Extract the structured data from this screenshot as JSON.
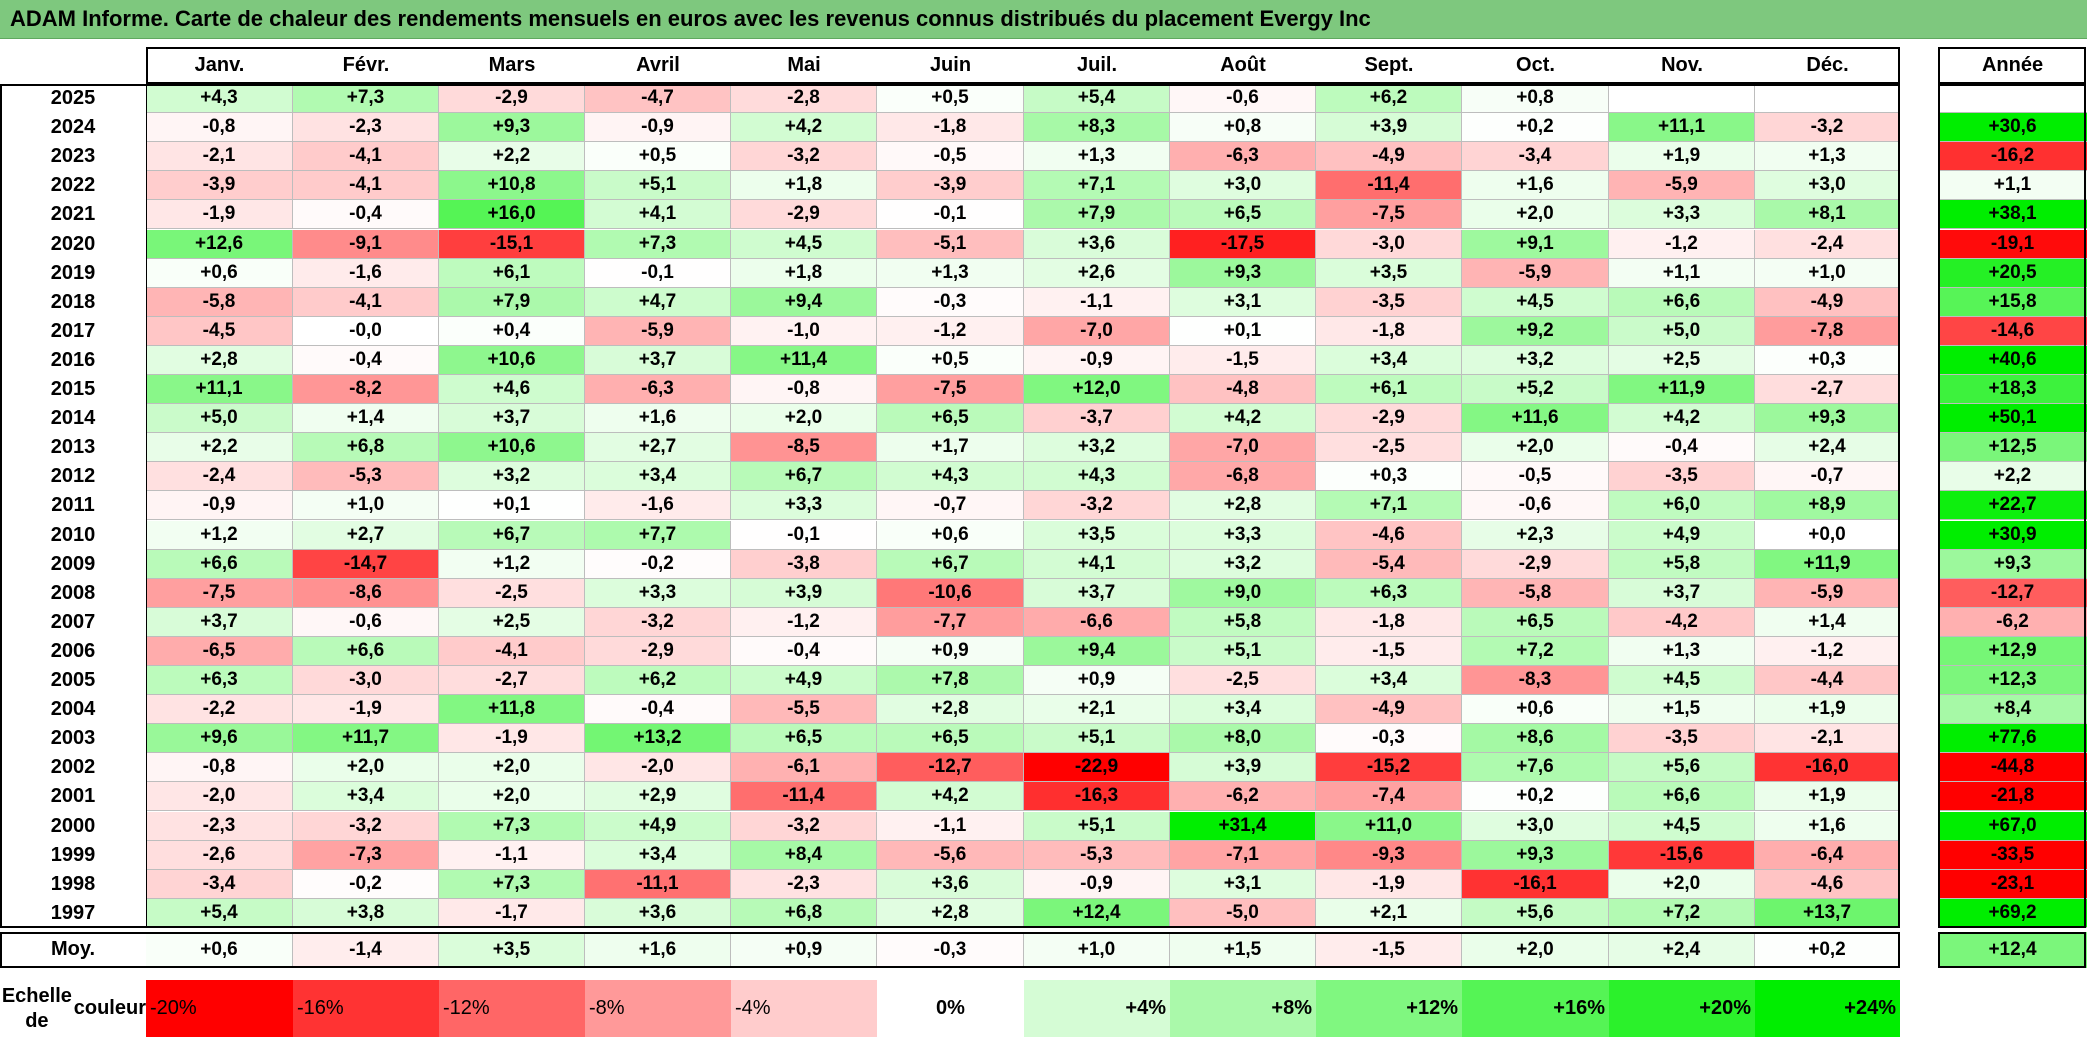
{
  "title": "ADAM Informe. Carte de chaleur des rendements mensuels en euros avec les revenus connus distribués du placement Evergy Inc",
  "chart_data": {
    "type": "heatmap",
    "title": "ADAM Informe. Carte de chaleur des rendements mensuels en euros avec les revenus connus distribués du placement Evergy Inc",
    "months": [
      "Janv.",
      "Févr.",
      "Mars",
      "Avril",
      "Mai",
      "Juin",
      "Juil.",
      "Août",
      "Sept.",
      "Oct.",
      "Nov.",
      "Déc."
    ],
    "annual_header": "Année",
    "rows": [
      {
        "year": "2025",
        "values": [
          "+4,3",
          "+7,3",
          "-2,9",
          "-4,7",
          "-2,8",
          "+0,5",
          "+5,4",
          "-0,6",
          "+6,2",
          "+0,8",
          "",
          ""
        ],
        "annual": ""
      },
      {
        "year": "2024",
        "values": [
          "-0,8",
          "-2,3",
          "+9,3",
          "-0,9",
          "+4,2",
          "-1,8",
          "+8,3",
          "+0,8",
          "+3,9",
          "+0,2",
          "+11,1",
          "-3,2"
        ],
        "annual": "+30,6"
      },
      {
        "year": "2023",
        "values": [
          "-2,1",
          "-4,1",
          "+2,2",
          "+0,5",
          "-3,2",
          "-0,5",
          "+1,3",
          "-6,3",
          "-4,9",
          "-3,4",
          "+1,9",
          "+1,3"
        ],
        "annual": "-16,2"
      },
      {
        "year": "2022",
        "values": [
          "-3,9",
          "-4,1",
          "+10,8",
          "+5,1",
          "+1,8",
          "-3,9",
          "+7,1",
          "+3,0",
          "-11,4",
          "+1,6",
          "-5,9",
          "+3,0"
        ],
        "annual": "+1,1"
      },
      {
        "year": "2021",
        "values": [
          "-1,9",
          "-0,4",
          "+16,0",
          "+4,1",
          "-2,9",
          "-0,1",
          "+7,9",
          "+6,5",
          "-7,5",
          "+2,0",
          "+3,3",
          "+8,1"
        ],
        "annual": "+38,1"
      },
      {
        "year": "2020",
        "values": [
          "+12,6",
          "-9,1",
          "-15,1",
          "+7,3",
          "+4,5",
          "-5,1",
          "+3,6",
          "-17,5",
          "-3,0",
          "+9,1",
          "-1,2",
          "-2,4"
        ],
        "annual": "-19,1"
      },
      {
        "year": "2019",
        "values": [
          "+0,6",
          "-1,6",
          "+6,1",
          "-0,1",
          "+1,8",
          "+1,3",
          "+2,6",
          "+9,3",
          "+3,5",
          "-5,9",
          "+1,1",
          "+1,0"
        ],
        "annual": "+20,5"
      },
      {
        "year": "2018",
        "values": [
          "-5,8",
          "-4,1",
          "+7,9",
          "+4,7",
          "+9,4",
          "-0,3",
          "-1,1",
          "+3,1",
          "-3,5",
          "+4,5",
          "+6,6",
          "-4,9"
        ],
        "annual": "+15,8"
      },
      {
        "year": "2017",
        "values": [
          "-4,5",
          "-0,0",
          "+0,4",
          "-5,9",
          "-1,0",
          "-1,2",
          "-7,0",
          "+0,1",
          "-1,8",
          "+9,2",
          "+5,0",
          "-7,8"
        ],
        "annual": "-14,6"
      },
      {
        "year": "2016",
        "values": [
          "+2,8",
          "-0,4",
          "+10,6",
          "+3,7",
          "+11,4",
          "+0,5",
          "-0,9",
          "-1,5",
          "+3,4",
          "+3,2",
          "+2,5",
          "+0,3"
        ],
        "annual": "+40,6"
      },
      {
        "year": "2015",
        "values": [
          "+11,1",
          "-8,2",
          "+4,6",
          "-6,3",
          "-0,8",
          "-7,5",
          "+12,0",
          "-4,8",
          "+6,1",
          "+5,2",
          "+11,9",
          "-2,7"
        ],
        "annual": "+18,3"
      },
      {
        "year": "2014",
        "values": [
          "+5,0",
          "+1,4",
          "+3,7",
          "+1,6",
          "+2,0",
          "+6,5",
          "-3,7",
          "+4,2",
          "-2,9",
          "+11,6",
          "+4,2",
          "+9,3"
        ],
        "annual": "+50,1"
      },
      {
        "year": "2013",
        "values": [
          "+2,2",
          "+6,8",
          "+10,6",
          "+2,7",
          "-8,5",
          "+1,7",
          "+3,2",
          "-7,0",
          "-2,5",
          "+2,0",
          "-0,4",
          "+2,4"
        ],
        "annual": "+12,5"
      },
      {
        "year": "2012",
        "values": [
          "-2,4",
          "-5,3",
          "+3,2",
          "+3,4",
          "+6,7",
          "+4,3",
          "+4,3",
          "-6,8",
          "+0,3",
          "-0,5",
          "-3,5",
          "-0,7"
        ],
        "annual": "+2,2"
      },
      {
        "year": "2011",
        "values": [
          "-0,9",
          "+1,0",
          "+0,1",
          "-1,6",
          "+3,3",
          "-0,7",
          "-3,2",
          "+2,8",
          "+7,1",
          "-0,6",
          "+6,0",
          "+8,9"
        ],
        "annual": "+22,7"
      },
      {
        "year": "2010",
        "values": [
          "+1,2",
          "+2,7",
          "+6,7",
          "+7,7",
          "-0,1",
          "+0,6",
          "+3,5",
          "+3,3",
          "-4,6",
          "+2,3",
          "+4,9",
          "+0,0"
        ],
        "annual": "+30,9"
      },
      {
        "year": "2009",
        "values": [
          "+6,6",
          "-14,7",
          "+1,2",
          "-0,2",
          "-3,8",
          "+6,7",
          "+4,1",
          "+3,2",
          "-5,4",
          "-2,9",
          "+5,8",
          "+11,9"
        ],
        "annual": "+9,3"
      },
      {
        "year": "2008",
        "values": [
          "-7,5",
          "-8,6",
          "-2,5",
          "+3,3",
          "+3,9",
          "-10,6",
          "+3,7",
          "+9,0",
          "+6,3",
          "-5,8",
          "+3,7",
          "-5,9"
        ],
        "annual": "-12,7"
      },
      {
        "year": "2007",
        "values": [
          "+3,7",
          "-0,6",
          "+2,5",
          "-3,2",
          "-1,2",
          "-7,7",
          "-6,6",
          "+5,8",
          "-1,8",
          "+6,5",
          "-4,2",
          "+1,4"
        ],
        "annual": "-6,2"
      },
      {
        "year": "2006",
        "values": [
          "-6,5",
          "+6,6",
          "-4,1",
          "-2,9",
          "-0,4",
          "+0,9",
          "+9,4",
          "+5,1",
          "-1,5",
          "+7,2",
          "+1,3",
          "-1,2"
        ],
        "annual": "+12,9"
      },
      {
        "year": "2005",
        "values": [
          "+6,3",
          "-3,0",
          "-2,7",
          "+6,2",
          "+4,9",
          "+7,8",
          "+0,9",
          "-2,5",
          "+3,4",
          "-8,3",
          "+4,5",
          "-4,4"
        ],
        "annual": "+12,3"
      },
      {
        "year": "2004",
        "values": [
          "-2,2",
          "-1,9",
          "+11,8",
          "-0,4",
          "-5,5",
          "+2,8",
          "+2,1",
          "+3,4",
          "-4,9",
          "+0,6",
          "+1,5",
          "+1,9"
        ],
        "annual": "+8,4"
      },
      {
        "year": "2003",
        "values": [
          "+9,6",
          "+11,7",
          "-1,9",
          "+13,2",
          "+6,5",
          "+6,5",
          "+5,1",
          "+8,0",
          "-0,3",
          "+8,6",
          "-3,5",
          "-2,1"
        ],
        "annual": "+77,6"
      },
      {
        "year": "2002",
        "values": [
          "-0,8",
          "+2,0",
          "+2,0",
          "-2,0",
          "-6,1",
          "-12,7",
          "-22,9",
          "+3,9",
          "-15,2",
          "+7,6",
          "+5,6",
          "-16,0"
        ],
        "annual": "-44,8"
      },
      {
        "year": "2001",
        "values": [
          "-2,0",
          "+3,4",
          "+2,0",
          "+2,9",
          "-11,4",
          "+4,2",
          "-16,3",
          "-6,2",
          "-7,4",
          "+0,2",
          "+6,6",
          "+1,9"
        ],
        "annual": "-21,8"
      },
      {
        "year": "2000",
        "values": [
          "-2,3",
          "-3,2",
          "+7,3",
          "+4,9",
          "-3,2",
          "-1,1",
          "+5,1",
          "+31,4",
          "+11,0",
          "+3,0",
          "+4,5",
          "+1,6"
        ],
        "annual": "+67,0"
      },
      {
        "year": "1999",
        "values": [
          "-2,6",
          "-7,3",
          "-1,1",
          "+3,4",
          "+8,4",
          "-5,6",
          "-5,3",
          "-7,1",
          "-9,3",
          "+9,3",
          "-15,6",
          "-6,4"
        ],
        "annual": "-33,5"
      },
      {
        "year": "1998",
        "values": [
          "-3,4",
          "-0,2",
          "+7,3",
          "-11,1",
          "-2,3",
          "+3,6",
          "-0,9",
          "+3,1",
          "-1,9",
          "-16,1",
          "+2,0",
          "-4,6"
        ],
        "annual": "-23,1"
      },
      {
        "year": "1997",
        "values": [
          "+5,4",
          "+3,8",
          "-1,7",
          "+3,6",
          "+6,8",
          "+2,8",
          "+12,4",
          "-5,0",
          "+2,1",
          "+5,6",
          "+7,2",
          "+13,7"
        ],
        "annual": "+69,2"
      }
    ],
    "average": {
      "label": "Moy.",
      "values": [
        "+0,6",
        "-1,4",
        "+3,5",
        "+1,6",
        "+0,9",
        "-0,3",
        "+1,0",
        "+1,5",
        "-1,5",
        "+2,0",
        "+2,4",
        "+0,2"
      ],
      "annual": "+12,4"
    },
    "scale": {
      "label_line1": "Echelle de",
      "label_line2": "couleur",
      "items": [
        {
          "label": "-20%",
          "value": -20
        },
        {
          "label": "-16%",
          "value": -16
        },
        {
          "label": "-12%",
          "value": -12
        },
        {
          "label": "-8%",
          "value": -8
        },
        {
          "label": "-4%",
          "value": -4
        },
        {
          "label": "0%",
          "value": 0
        },
        {
          "label": "+4%",
          "value": 4
        },
        {
          "label": "+8%",
          "value": 8
        },
        {
          "label": "+12%",
          "value": 12
        },
        {
          "label": "+16%",
          "value": 16
        },
        {
          "label": "+20%",
          "value": 20
        },
        {
          "label": "+24%",
          "value": 24
        }
      ]
    },
    "colors": {
      "negative": "#ff0000",
      "neutral": "#ffffff",
      "positive": "#00ee00",
      "title_bar": "#7ec87e"
    }
  }
}
